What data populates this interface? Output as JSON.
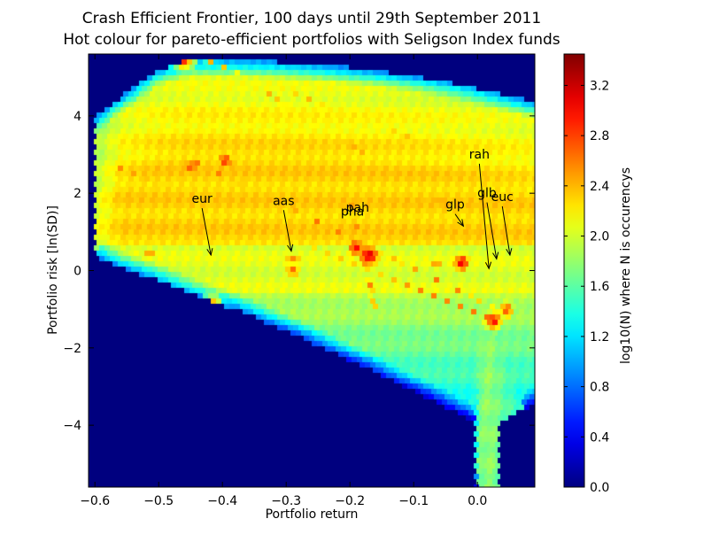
{
  "chart_data": {
    "type": "heatmap",
    "subtype": "hexbin",
    "title_lines": [
      "Crash Efficient Frontier, 100 days until 29th September 2011",
      "Hot colour for pareto-efficient portfolios with Seligson Index funds"
    ],
    "xlabel": "Portfolio return",
    "ylabel": "Portfolio risk [ln(SD)]",
    "xlim": [
      -0.61,
      0.09
    ],
    "ylim": [
      -5.6,
      5.6
    ],
    "xticks": [
      -0.6,
      -0.5,
      -0.4,
      -0.3,
      -0.2,
      -0.1,
      0.0
    ],
    "xtick_labels": [
      "−0.6",
      "−0.5",
      "−0.4",
      "−0.3",
      "−0.2",
      "−0.1",
      "0.0"
    ],
    "yticks": [
      4,
      2,
      0,
      -2,
      -4
    ],
    "ytick_labels": [
      "4",
      "2",
      "0",
      "−2",
      "−4"
    ],
    "background_color": "#00007f",
    "grid": false,
    "colorbar": {
      "label": "log10(N) where N is occurencys",
      "range": [
        0.0,
        3.45
      ],
      "ticks": [
        0.0,
        0.4,
        0.8,
        1.2,
        1.6,
        2.0,
        2.4,
        2.8,
        3.2
      ],
      "tick_labels": [
        "0.0",
        "0.4",
        "0.8",
        "1.2",
        "1.6",
        "2.0",
        "2.4",
        "2.8",
        "3.2"
      ],
      "colormap": "jet"
    },
    "annotations": [
      {
        "text": "eur",
        "text_x": -0.432,
        "text_y": 1.75,
        "arrow_x": -0.418,
        "arrow_y": 0.4
      },
      {
        "text": "aas",
        "text_x": -0.304,
        "text_y": 1.7,
        "arrow_x": -0.292,
        "arrow_y": 0.5
      },
      {
        "text": "pha",
        "text_x": -0.196,
        "text_y": 1.42,
        "arrow_x": null,
        "arrow_y": null
      },
      {
        "text": "pah",
        "text_x": -0.188,
        "text_y": 1.52,
        "arrow_x": null,
        "arrow_y": null
      },
      {
        "text": "glp",
        "text_x": -0.035,
        "text_y": 1.6,
        "arrow_x": -0.022,
        "arrow_y": 1.15
      },
      {
        "text": "rah",
        "text_x": 0.003,
        "text_y": 2.9,
        "arrow_x": 0.018,
        "arrow_y": 0.05
      },
      {
        "text": "glb",
        "text_x": 0.015,
        "text_y": 1.9,
        "arrow_x": 0.03,
        "arrow_y": 0.3
      },
      {
        "text": "euc",
        "text_x": 0.039,
        "text_y": 1.8,
        "arrow_x": 0.051,
        "arrow_y": 0.4
      }
    ],
    "density_features": [
      {
        "kind": "band",
        "from": [
          -0.57,
          2.7
        ],
        "to": [
          0.03,
          -1.3
        ],
        "strength": 2.7
      },
      {
        "kind": "band",
        "from": [
          -0.46,
          2.95
        ],
        "to": [
          0.03,
          -1.0
        ],
        "strength": 2.6
      },
      {
        "kind": "band",
        "from": [
          -0.6,
          0.5
        ],
        "to": [
          -0.03,
          0.15
        ],
        "strength": 2.55
      },
      {
        "kind": "band",
        "from": [
          -0.42,
          5.4
        ],
        "to": [
          -0.05,
          3.1
        ],
        "strength": 2.5
      },
      {
        "kind": "band",
        "from": [
          -0.33,
          4.6
        ],
        "to": [
          0.0,
          1.2
        ],
        "strength": 2.45
      },
      {
        "kind": "band",
        "from": [
          -0.2,
          1.9
        ],
        "to": [
          -0.16,
          -1.0
        ],
        "strength": 2.55
      },
      {
        "kind": "hotspot",
        "x": -0.17,
        "y": 0.4,
        "value": 3.35
      },
      {
        "kind": "hotspot",
        "x": -0.19,
        "y": 0.6,
        "value": 3.2
      },
      {
        "kind": "hotspot",
        "x": -0.395,
        "y": 2.85,
        "value": 3.1
      },
      {
        "kind": "hotspot",
        "x": -0.45,
        "y": 2.7,
        "value": 2.95
      },
      {
        "kind": "hotspot",
        "x": -0.025,
        "y": 0.2,
        "value": 3.15
      },
      {
        "kind": "hotspot",
        "x": 0.025,
        "y": -1.3,
        "value": 3.1
      },
      {
        "kind": "hotspot",
        "x": 0.045,
        "y": -1.0,
        "value": 2.95
      },
      {
        "kind": "hotspot",
        "x": -0.46,
        "y": 5.45,
        "value": 3.05
      },
      {
        "kind": "hotspot",
        "x": -0.29,
        "y": 0.0,
        "value": 2.9
      },
      {
        "kind": "hotspot",
        "x": -0.415,
        "y": -0.85,
        "value": 2.7
      }
    ]
  }
}
